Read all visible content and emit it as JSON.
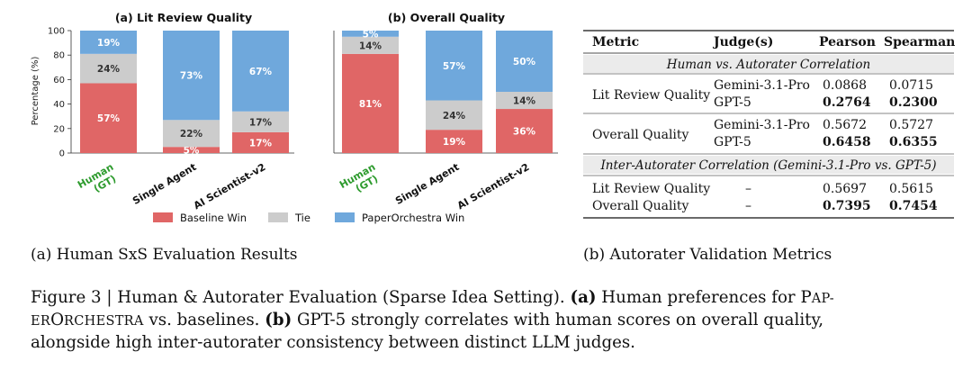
{
  "colors": {
    "baseline": "#e06666",
    "tie": "#cccccc",
    "paperorchestra": "#6fa8dc",
    "human_tick": "#2e9b2e"
  },
  "chart_data": [
    {
      "type": "bar",
      "stacked": true,
      "title": "(a) Lit Review Quality",
      "ylabel": "Percentage (%)",
      "ylim": [
        0,
        100
      ],
      "yticks": [
        "0",
        "20",
        "40",
        "60",
        "80",
        "100"
      ],
      "categories": [
        "Human (GT)",
        "Single Agent",
        "AI Scientist-v2"
      ],
      "series": [
        {
          "name": "Baseline Win",
          "values": [
            57,
            5,
            17
          ],
          "labels": [
            "57%",
            "5%",
            "17%"
          ]
        },
        {
          "name": "Tie",
          "values": [
            24,
            22,
            17
          ],
          "labels": [
            "24%",
            "22%",
            "17%"
          ]
        },
        {
          "name": "PaperOrchestra Win",
          "values": [
            19,
            73,
            67
          ],
          "labels": [
            "19%",
            "73%",
            "67%"
          ]
        }
      ]
    },
    {
      "type": "bar",
      "stacked": true,
      "title": "(b) Overall Quality",
      "ylim": [
        0,
        100
      ],
      "categories": [
        "Human (GT)",
        "Single Agent",
        "AI Scientist-v2"
      ],
      "series": [
        {
          "name": "Baseline Win",
          "values": [
            81,
            19,
            36
          ],
          "labels": [
            "81%",
            "19%",
            "36%"
          ]
        },
        {
          "name": "Tie",
          "values": [
            14,
            24,
            14
          ],
          "labels": [
            "14%",
            "24%",
            "14%"
          ]
        },
        {
          "name": "PaperOrchestra Win",
          "values": [
            5,
            57,
            50
          ],
          "labels": [
            "5%",
            "57%",
            "50%"
          ]
        }
      ]
    }
  ],
  "legend": [
    "Baseline Win",
    "Tie",
    "PaperOrchestra Win"
  ],
  "xtick_lines": [
    [
      "Human",
      "(GT)"
    ],
    [
      "Single Agent"
    ],
    [
      "AI Scientist-v2"
    ]
  ],
  "table": {
    "headers": [
      "Metric",
      "Judge(s)",
      "Pearson",
      "Spearman"
    ],
    "section1": "Human vs. Autorater Correlation",
    "lit_review": {
      "metric": "Lit Review Quality",
      "judge1": "Gemini-3.1-Pro",
      "judge2": "GPT-5",
      "p1": "0.0868",
      "s1": "0.0715",
      "p2": "0.2764",
      "s2": "0.2300"
    },
    "overall": {
      "metric": "Overall Quality",
      "judge1": "Gemini-3.1-Pro",
      "judge2": "GPT-5",
      "p1": "0.5672",
      "s1": "0.5727",
      "p2": "0.6458",
      "s2": "0.6355"
    },
    "section2": "Inter-Autorater Correlation (Gemini-3.1-Pro vs. GPT-5)",
    "inter_lit": {
      "metric": "Lit Review Quality",
      "judge": "–",
      "p": "0.5697",
      "s": "0.5615"
    },
    "inter_overall": {
      "metric": "Overall Quality",
      "judge": "–",
      "p": "0.7395",
      "s": "0.7454"
    }
  },
  "subcaption_a": "(a) Human SxS Evaluation Results",
  "subcaption_b": "(b) Autorater Validation Metrics",
  "caption": {
    "prefix": "Figure 3 | Human & Autorater Evaluation (Sparse Idea Setting).",
    "a_tag": "(a)",
    "a_text_1": "Human preferences for",
    "name_p1": "P",
    "name_p2": "AP-",
    "name_e": "ER",
    "name_o": "O",
    "name_rest": "RCHESTRA",
    "a_text_2": "vs. baselines.",
    "b_tag": "(b)",
    "b_text_1": "GPT-5 strongly correlates with human scores on overall quality,",
    "line3": "alongside high inter-autorater consistency between distinct LLM judges."
  }
}
